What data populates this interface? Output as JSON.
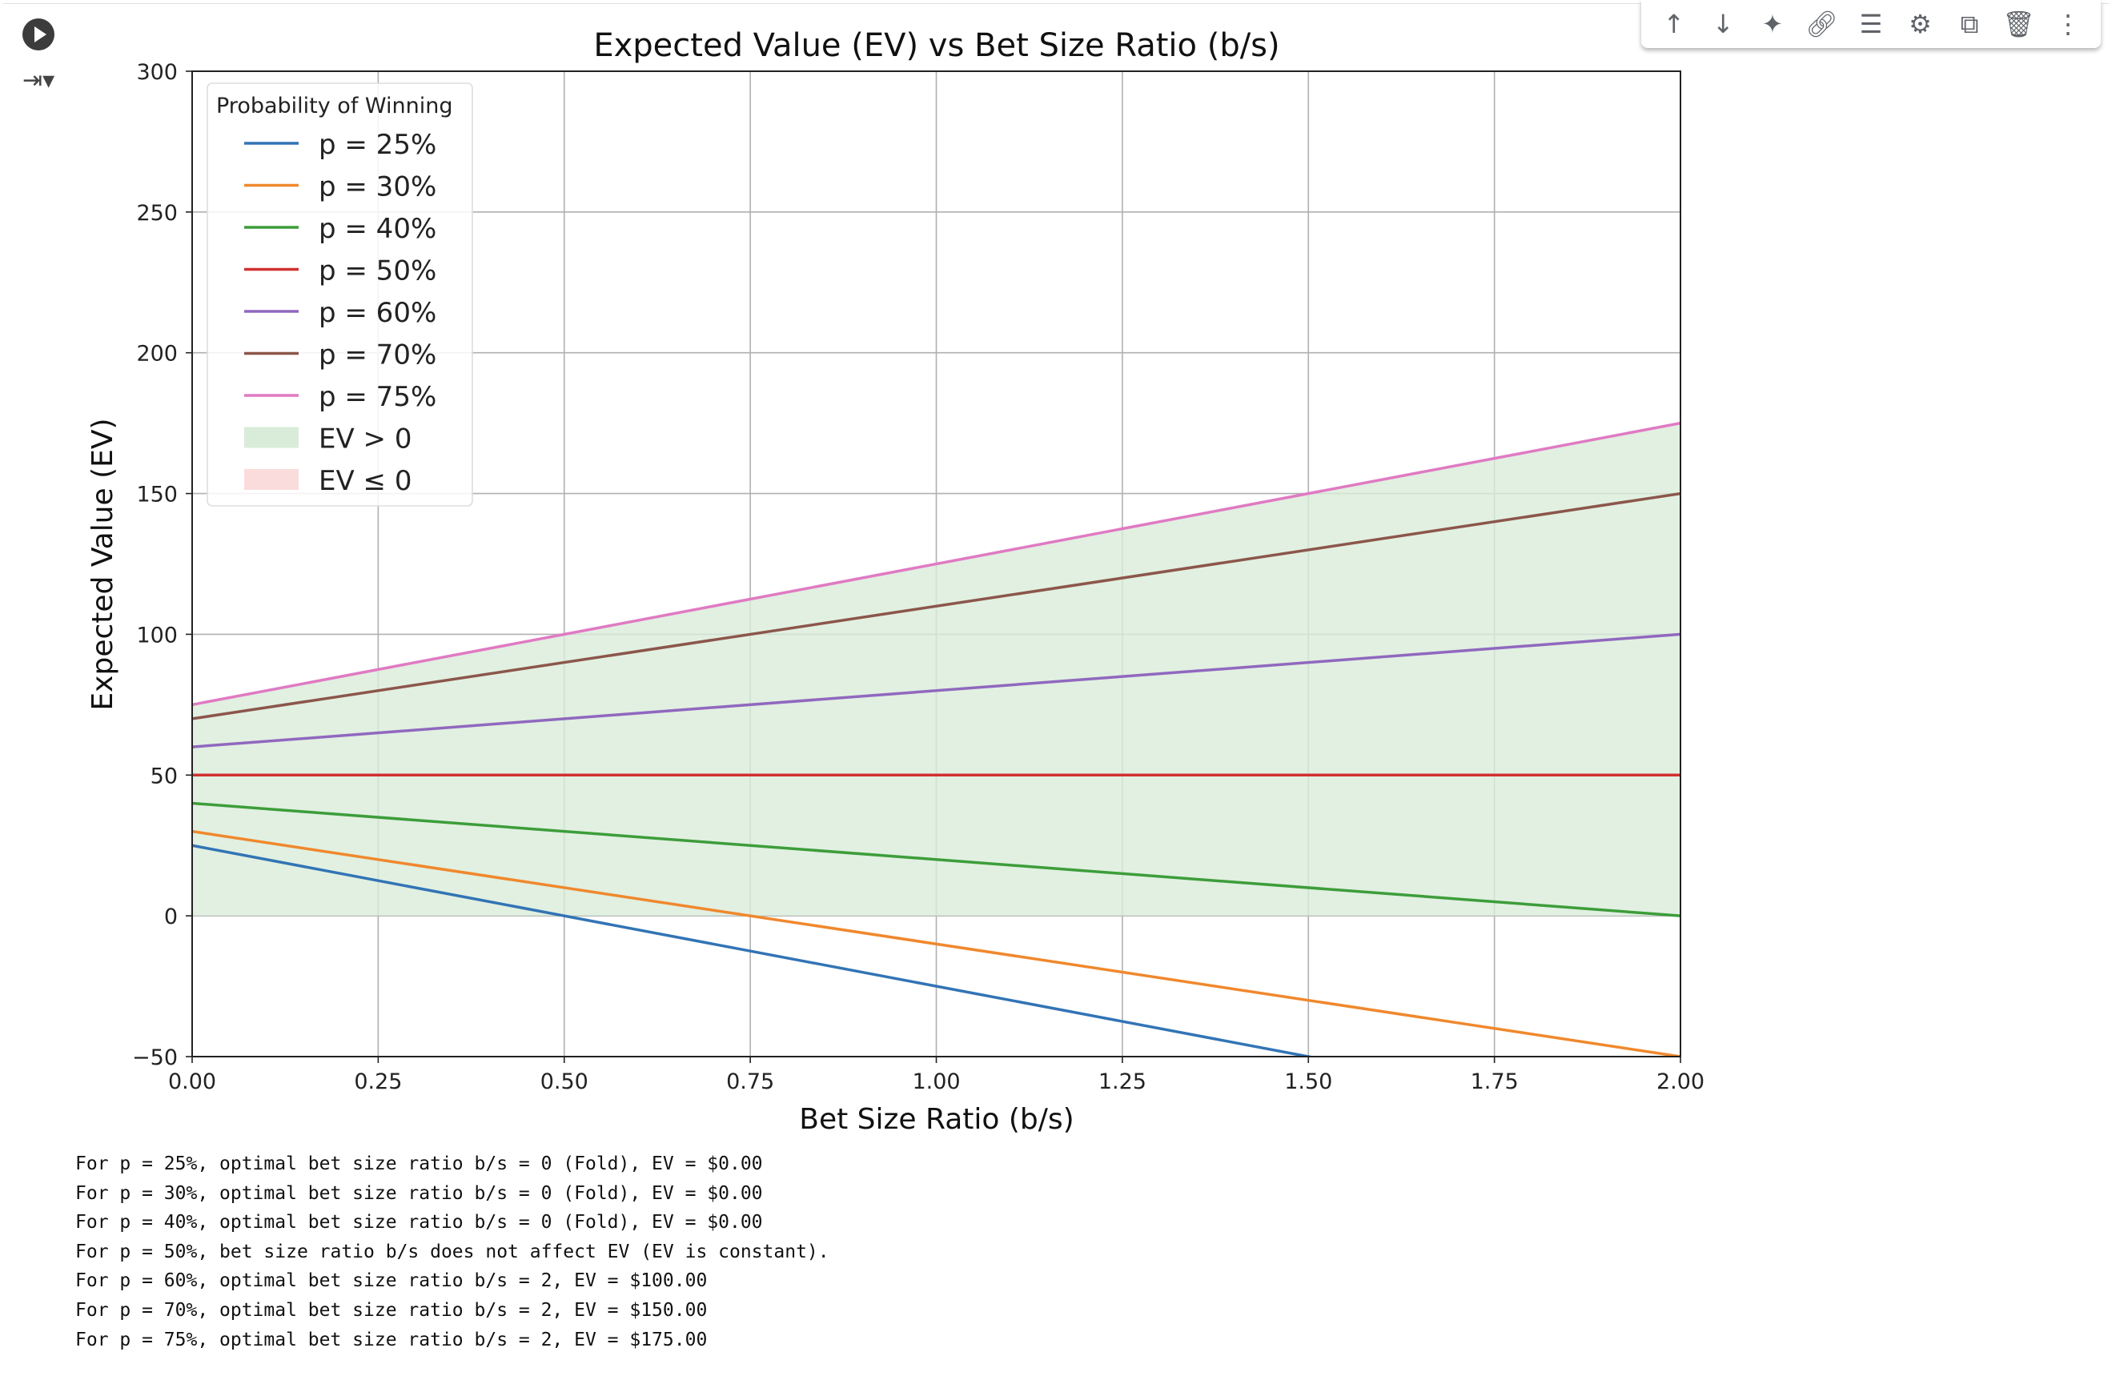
{
  "toolbar": {
    "icons": [
      "arrow-up-icon",
      "arrow-down-icon",
      "sparkle-icon",
      "link-icon",
      "comment-icon",
      "gear-icon",
      "mirror-cell-icon",
      "trash-icon",
      "more-vert-icon"
    ]
  },
  "chart_data": {
    "type": "line",
    "title": "Expected Value (EV) vs Bet Size Ratio (b/s)",
    "xlabel": "Bet Size Ratio (b/s)",
    "ylabel": "Expected Value (EV)",
    "xlim": [
      0,
      2
    ],
    "ylim": [
      -50,
      300
    ],
    "xticks": [
      "0.00",
      "0.25",
      "0.50",
      "0.75",
      "1.00",
      "1.25",
      "1.50",
      "1.75",
      "2.00"
    ],
    "yticks": [
      "−50",
      "0",
      "50",
      "100",
      "150",
      "200",
      "250",
      "300"
    ],
    "grid": true,
    "legend_title": "Probability of Winning",
    "legend_position": "top-left",
    "series": [
      {
        "name": "p = 25%",
        "color": "#3274b5",
        "x": [
          0,
          2
        ],
        "y": [
          25,
          -75
        ]
      },
      {
        "name": "p = 30%",
        "color": "#f0882d",
        "x": [
          0,
          2
        ],
        "y": [
          30,
          -50
        ]
      },
      {
        "name": "p = 40%",
        "color": "#3d9d3a",
        "x": [
          0,
          2
        ],
        "y": [
          40,
          0
        ]
      },
      {
        "name": "p = 50%",
        "color": "#d0302e",
        "x": [
          0,
          2
        ],
        "y": [
          50,
          50
        ]
      },
      {
        "name": "p = 60%",
        "color": "#9068bf",
        "x": [
          0,
          2
        ],
        "y": [
          60,
          100
        ]
      },
      {
        "name": "p = 70%",
        "color": "#8c564b",
        "x": [
          0,
          2
        ],
        "y": [
          70,
          150
        ]
      },
      {
        "name": "p = 75%",
        "color": "#e07ac3",
        "x": [
          0,
          2
        ],
        "y": [
          75,
          175
        ]
      }
    ],
    "fills": [
      {
        "name": "EV > 0",
        "color": "#d9ecd9"
      },
      {
        "name": "EV ≤ 0",
        "color": "#fbdcdc"
      }
    ],
    "vline_x": 2
  },
  "output_lines": [
    "For p = 25%, optimal bet size ratio b/s = 0 (Fold), EV = $0.00",
    "For p = 30%, optimal bet size ratio b/s = 0 (Fold), EV = $0.00",
    "For p = 40%, optimal bet size ratio b/s = 0 (Fold), EV = $0.00",
    "For p = 50%, bet size ratio b/s does not affect EV (EV is constant).",
    "For p = 60%, optimal bet size ratio b/s = 2, EV = $100.00",
    "For p = 70%, optimal bet size ratio b/s = 2, EV = $150.00",
    "For p = 75%, optimal bet size ratio b/s = 2, EV = $175.00"
  ]
}
